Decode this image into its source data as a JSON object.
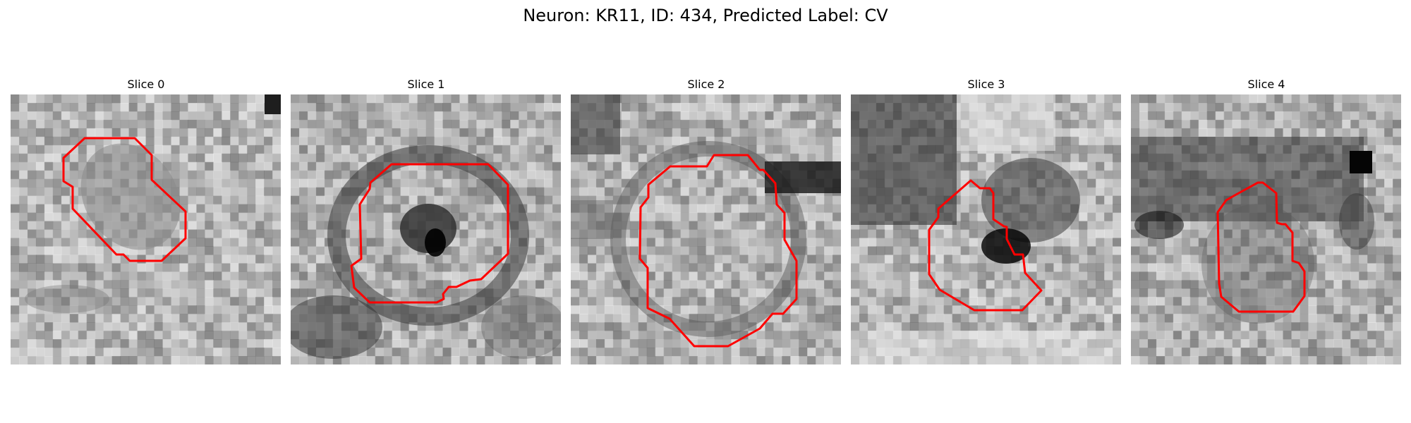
{
  "figure": {
    "title": "Neuron: KR11, ID: 434, Predicted Label: CV",
    "contour_color": "#ff0000"
  },
  "panels": [
    {
      "title": "Slice 0"
    },
    {
      "title": "Slice 1"
    },
    {
      "title": "Slice 2"
    },
    {
      "title": "Slice 3"
    },
    {
      "title": "Slice 4"
    }
  ]
}
